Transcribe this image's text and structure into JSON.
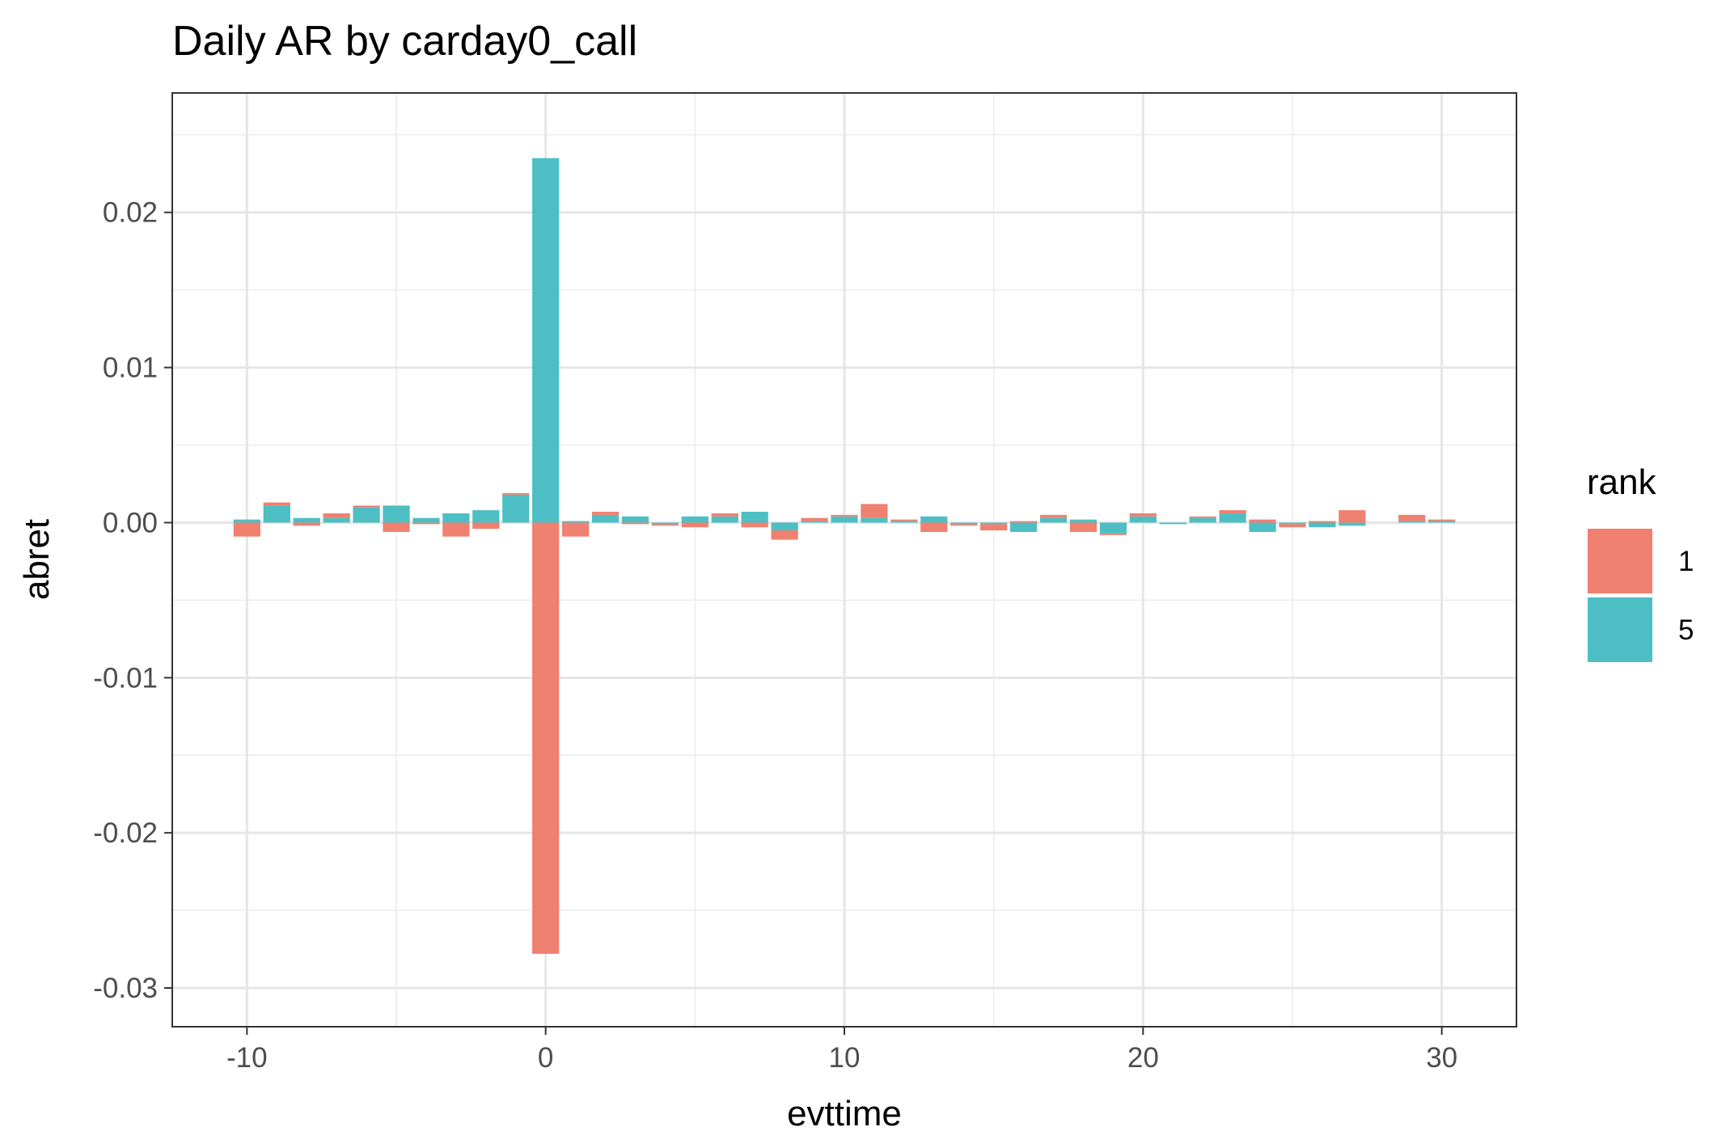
{
  "chart_data": {
    "type": "bar",
    "title": "Daily AR by carday0_call",
    "xlabel": "evttime",
    "ylabel": "abret",
    "xlim": [
      -12.5,
      32.5
    ],
    "ylim": [
      -0.0325,
      0.0277
    ],
    "x_ticks": [
      -10,
      0,
      10,
      20,
      30
    ],
    "x_tick_labels": [
      "-10",
      "0",
      "10",
      "20",
      "30"
    ],
    "y_ticks": [
      -0.03,
      -0.02,
      -0.01,
      0.0,
      0.01,
      0.02
    ],
    "y_tick_labels": [
      "-0.03",
      "-0.02",
      "-0.01",
      "0.00",
      "0.01",
      "0.02"
    ],
    "grid": true,
    "stacked": true,
    "legend": {
      "title": "rank",
      "placement": "right"
    },
    "x": [
      -10,
      -9,
      -8,
      -7,
      -6,
      -5,
      -4,
      -3,
      -2,
      -1,
      0,
      1,
      2,
      3,
      4,
      5,
      6,
      7,
      8,
      9,
      10,
      11,
      12,
      13,
      14,
      15,
      16,
      17,
      18,
      19,
      20,
      21,
      22,
      23,
      24,
      25,
      26,
      27,
      28,
      29,
      30
    ],
    "series": [
      {
        "name": "1",
        "color": "#F08070",
        "values": [
          -0.0009,
          0.0002,
          -0.0002,
          0.0003,
          0.0001,
          -0.0006,
          -0.0001,
          -0.0009,
          -0.0004,
          0.0001,
          -0.0278,
          -0.0009,
          0.0002,
          -0.0001,
          -0.0001,
          -0.0003,
          0.0002,
          -0.0003,
          -0.0006,
          0.0002,
          0.0001,
          0.0009,
          0.0001,
          -0.0006,
          -0.0001,
          -0.0004,
          0.0001,
          0.0002,
          -0.0006,
          -0.0001,
          0.0002,
          0.0,
          0.0001,
          0.0002,
          0.0002,
          -0.0002,
          0.0001,
          0.0008,
          0.0,
          0.0004,
          0.0001
        ]
      },
      {
        "name": "5",
        "color": "#4DBFC4",
        "values": [
          0.0002,
          0.0011,
          0.0003,
          0.0003,
          0.001,
          0.0011,
          0.0003,
          0.0006,
          0.0008,
          0.0018,
          0.0235,
          0.0001,
          0.0005,
          0.0004,
          -0.0001,
          0.0004,
          0.0004,
          0.0007,
          -0.0005,
          0.0001,
          0.0004,
          0.0003,
          0.0001,
          0.0004,
          -0.0001,
          -0.0001,
          -0.0006,
          0.0003,
          0.0002,
          -0.0007,
          0.0004,
          -0.0001,
          0.0003,
          0.0006,
          -0.0006,
          -0.0001,
          -0.0003,
          -0.0002,
          0.0,
          0.0001,
          0.0001
        ]
      }
    ]
  }
}
